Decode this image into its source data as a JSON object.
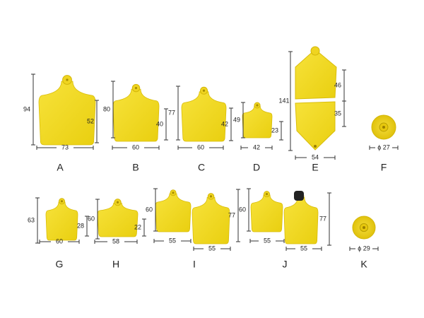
{
  "items": [
    {
      "letter": "A",
      "dims": [
        "94",
        "52",
        "73"
      ]
    },
    {
      "letter": "B",
      "dims": [
        "80",
        "40",
        "60"
      ]
    },
    {
      "letter": "C",
      "dims": [
        "77",
        "42",
        "60"
      ]
    },
    {
      "letter": "D",
      "dims": [
        "49",
        "23",
        "42"
      ]
    },
    {
      "letter": "E",
      "dims": [
        "141",
        "46",
        "35",
        "54"
      ]
    },
    {
      "letter": "F",
      "dims": [
        "ϕ 27"
      ]
    },
    {
      "letter": "G",
      "dims": [
        "63",
        "28",
        "60"
      ]
    },
    {
      "letter": "H",
      "dims": [
        "60",
        "22",
        "58"
      ]
    },
    {
      "letter": "I",
      "dims": [
        "60",
        "77",
        "55",
        "55"
      ]
    },
    {
      "letter": "J",
      "dims": [
        "60",
        "77",
        "55",
        "55"
      ]
    },
    {
      "letter": "K",
      "dims": [
        "ϕ 29"
      ]
    }
  ]
}
